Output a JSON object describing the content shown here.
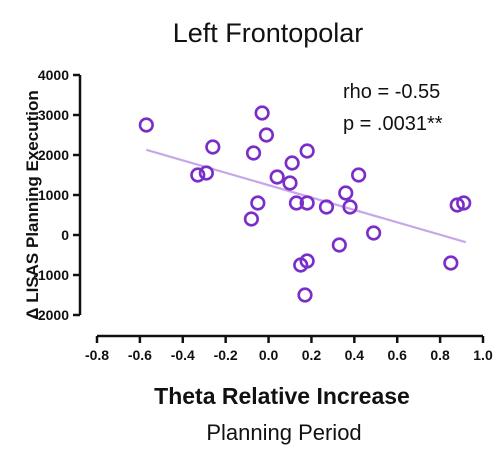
{
  "chart_data": {
    "type": "scatter",
    "title": "Left Frontopolar",
    "xlabel": "Theta Relative Increase",
    "xlabel_sub": "Planning Period",
    "ylabel": "Δ LISAS Planning Execution",
    "xlim": [
      -0.8,
      1.0
    ],
    "ylim": [
      -2000,
      4000
    ],
    "xticks": [
      "-0.8",
      "-0.6",
      "-0.4",
      "-0.2",
      "0.0",
      "0.2",
      "0.4",
      "0.6",
      "0.8",
      "1.0"
    ],
    "yticks": [
      "4000",
      "3000",
      "2000",
      "1000",
      "0",
      "-1000",
      "-2000"
    ],
    "annotations": [
      "rho = -0.55",
      "p = .0031**"
    ],
    "grid": false,
    "colors": {
      "points": "#7a2ec8",
      "fit_line": "#c8a7e8"
    },
    "fit_line": {
      "x": [
        -0.57,
        0.92
      ],
      "y": [
        2130,
        -180
      ]
    },
    "points": [
      {
        "x": -0.57,
        "y": 2750
      },
      {
        "x": -0.33,
        "y": 1500
      },
      {
        "x": -0.29,
        "y": 1550
      },
      {
        "x": -0.26,
        "y": 2200
      },
      {
        "x": -0.07,
        "y": 2050
      },
      {
        "x": -0.08,
        "y": 400
      },
      {
        "x": -0.05,
        "y": 800
      },
      {
        "x": -0.03,
        "y": 3050
      },
      {
        "x": -0.01,
        "y": 2500
      },
      {
        "x": 0.04,
        "y": 1450
      },
      {
        "x": 0.1,
        "y": 1300
      },
      {
        "x": 0.11,
        "y": 1800
      },
      {
        "x": 0.13,
        "y": 800
      },
      {
        "x": 0.15,
        "y": -750
      },
      {
        "x": 0.17,
        "y": -1500
      },
      {
        "x": 0.18,
        "y": -650
      },
      {
        "x": 0.18,
        "y": 800
      },
      {
        "x": 0.18,
        "y": 2100
      },
      {
        "x": 0.27,
        "y": 700
      },
      {
        "x": 0.33,
        "y": -250
      },
      {
        "x": 0.36,
        "y": 1050
      },
      {
        "x": 0.38,
        "y": 700
      },
      {
        "x": 0.42,
        "y": 1500
      },
      {
        "x": 0.49,
        "y": 50
      },
      {
        "x": 0.85,
        "y": -700
      },
      {
        "x": 0.88,
        "y": 750
      },
      {
        "x": 0.91,
        "y": 800
      }
    ]
  }
}
